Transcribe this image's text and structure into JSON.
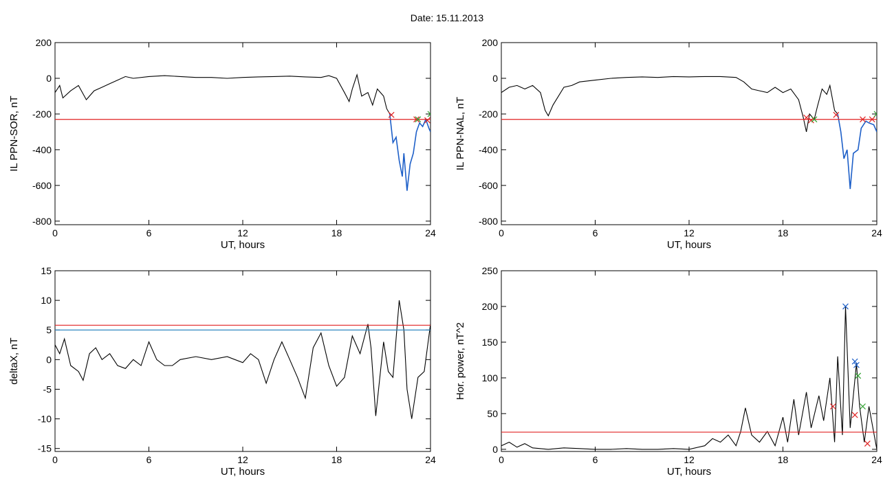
{
  "title": "Date:  15.11.2013",
  "colors": {
    "trace": "#000000",
    "highlight": "#1d5fc8",
    "threshold_red": "#e02020",
    "threshold_blue": "#2e86c1",
    "marker_red": "#e02020",
    "marker_green": "#2ca02c",
    "marker_blue": "#1d5fc8"
  },
  "chart_data": [
    {
      "type": "line",
      "xlabel": "UT, hours",
      "ylabel": "IL PPN-SOR, nT",
      "xlim": [
        0,
        24
      ],
      "ylim": [
        -820,
        200
      ],
      "xticks": [
        0,
        6,
        12,
        18,
        24
      ],
      "yticks": [
        -800,
        -600,
        -400,
        -200,
        0,
        200
      ],
      "series": [
        {
          "color": "black",
          "points": [
            [
              0,
              -80
            ],
            [
              0.3,
              -40
            ],
            [
              0.5,
              -110
            ],
            [
              1,
              -70
            ],
            [
              1.5,
              -40
            ],
            [
              2,
              -120
            ],
            [
              2.5,
              -70
            ],
            [
              3,
              -50
            ],
            [
              3.5,
              -30
            ],
            [
              4,
              -10
            ],
            [
              4.5,
              10
            ],
            [
              5,
              0
            ],
            [
              6,
              10
            ],
            [
              7,
              15
            ],
            [
              8,
              10
            ],
            [
              9,
              5
            ],
            [
              10,
              5
            ],
            [
              11,
              0
            ],
            [
              12,
              5
            ],
            [
              13,
              8
            ],
            [
              14,
              10
            ],
            [
              15,
              12
            ],
            [
              16,
              8
            ],
            [
              17,
              5
            ],
            [
              17.5,
              15
            ],
            [
              18,
              0
            ],
            [
              18.5,
              -80
            ],
            [
              18.8,
              -130
            ],
            [
              19,
              -60
            ],
            [
              19.3,
              20
            ],
            [
              19.6,
              -100
            ],
            [
              20,
              -80
            ],
            [
              20.3,
              -150
            ],
            [
              20.6,
              -60
            ],
            [
              21,
              -100
            ],
            [
              21.2,
              -170
            ],
            [
              21.4,
              -200
            ]
          ]
        },
        {
          "color": "blue",
          "points": [
            [
              21.4,
              -200
            ],
            [
              21.6,
              -360
            ],
            [
              21.8,
              -330
            ],
            [
              22,
              -460
            ],
            [
              22.2,
              -550
            ],
            [
              22.3,
              -420
            ],
            [
              22.5,
              -630
            ],
            [
              22.7,
              -480
            ],
            [
              22.9,
              -420
            ],
            [
              23.1,
              -300
            ],
            [
              23.3,
              -250
            ],
            [
              23.5,
              -270
            ],
            [
              23.7,
              -230
            ],
            [
              23.9,
              -280
            ],
            [
              24,
              -300
            ]
          ]
        }
      ],
      "thresholds": [
        {
          "y": -230,
          "color": "red"
        }
      ],
      "markers": [
        {
          "x": 21.5,
          "y": -205,
          "color": "red"
        },
        {
          "x": 23.1,
          "y": -230,
          "color": "red"
        },
        {
          "x": 23.2,
          "y": -230,
          "color": "green"
        },
        {
          "x": 23.8,
          "y": -235,
          "color": "red"
        },
        {
          "x": 24,
          "y": -200,
          "color": "green"
        }
      ]
    },
    {
      "type": "line",
      "xlabel": "UT, hours",
      "ylabel": "IL PPN-NAL, nT",
      "xlim": [
        0,
        24
      ],
      "ylim": [
        -820,
        200
      ],
      "xticks": [
        0,
        6,
        12,
        18,
        24
      ],
      "yticks": [
        -800,
        -600,
        -400,
        -200,
        0,
        200
      ],
      "series": [
        {
          "color": "black",
          "points": [
            [
              0,
              -80
            ],
            [
              0.5,
              -50
            ],
            [
              1,
              -40
            ],
            [
              1.5,
              -60
            ],
            [
              2,
              -40
            ],
            [
              2.5,
              -80
            ],
            [
              2.8,
              -180
            ],
            [
              3,
              -210
            ],
            [
              3.3,
              -150
            ],
            [
              4,
              -50
            ],
            [
              4.5,
              -40
            ],
            [
              5,
              -20
            ],
            [
              6,
              -10
            ],
            [
              7,
              0
            ],
            [
              8,
              5
            ],
            [
              9,
              8
            ],
            [
              10,
              5
            ],
            [
              11,
              10
            ],
            [
              12,
              8
            ],
            [
              13,
              10
            ],
            [
              14,
              10
            ],
            [
              15,
              5
            ],
            [
              15.5,
              -20
            ],
            [
              16,
              -60
            ],
            [
              16.5,
              -70
            ],
            [
              17,
              -80
            ],
            [
              17.5,
              -50
            ],
            [
              18,
              -80
            ],
            [
              18.5,
              -60
            ],
            [
              19,
              -120
            ],
            [
              19.3,
              -220
            ],
            [
              19.5,
              -300
            ],
            [
              19.7,
              -200
            ],
            [
              20,
              -230
            ],
            [
              20.2,
              -160
            ],
            [
              20.5,
              -60
            ],
            [
              20.8,
              -90
            ],
            [
              21,
              -40
            ],
            [
              21.3,
              -180
            ],
            [
              21.5,
              -200
            ]
          ]
        },
        {
          "color": "blue",
          "points": [
            [
              21.5,
              -200
            ],
            [
              21.7,
              -300
            ],
            [
              21.9,
              -450
            ],
            [
              22.1,
              -400
            ],
            [
              22.3,
              -620
            ],
            [
              22.5,
              -420
            ],
            [
              22.8,
              -400
            ],
            [
              23,
              -280
            ],
            [
              23.3,
              -240
            ],
            [
              23.5,
              -250
            ],
            [
              23.8,
              -260
            ],
            [
              24,
              -300
            ]
          ]
        }
      ],
      "thresholds": [
        {
          "y": -230,
          "color": "red"
        }
      ],
      "markers": [
        {
          "x": 19.5,
          "y": -220,
          "color": "red"
        },
        {
          "x": 19.8,
          "y": -235,
          "color": "red"
        },
        {
          "x": 20,
          "y": -230,
          "color": "green"
        },
        {
          "x": 21.4,
          "y": -205,
          "color": "red"
        },
        {
          "x": 23.1,
          "y": -230,
          "color": "red"
        },
        {
          "x": 23.7,
          "y": -230,
          "color": "red"
        },
        {
          "x": 24,
          "y": -200,
          "color": "green"
        }
      ]
    },
    {
      "type": "line",
      "xlabel": "UT, hours",
      "ylabel": "deltaX, nT",
      "xlim": [
        0,
        24
      ],
      "ylim": [
        -15.5,
        15
      ],
      "xticks": [
        0,
        6,
        12,
        18,
        24
      ],
      "yticks": [
        -15,
        -10,
        -5,
        0,
        5,
        10,
        15
      ],
      "series": [
        {
          "color": "black",
          "points": [
            [
              0,
              2.5
            ],
            [
              0.3,
              1
            ],
            [
              0.6,
              3.5
            ],
            [
              1,
              -1
            ],
            [
              1.5,
              -2
            ],
            [
              1.8,
              -3.5
            ],
            [
              2.2,
              1
            ],
            [
              2.6,
              2
            ],
            [
              3,
              0
            ],
            [
              3.5,
              1
            ],
            [
              4,
              -1
            ],
            [
              4.5,
              -1.5
            ],
            [
              5,
              0
            ],
            [
              5.5,
              -1
            ],
            [
              6,
              3
            ],
            [
              6.5,
              0
            ],
            [
              7,
              -1
            ],
            [
              7.5,
              -1
            ],
            [
              8,
              0
            ],
            [
              9,
              0.5
            ],
            [
              10,
              0
            ],
            [
              11,
              0.5
            ],
            [
              12,
              -0.5
            ],
            [
              12.5,
              1
            ],
            [
              13,
              0
            ],
            [
              13.5,
              -4
            ],
            [
              14,
              0
            ],
            [
              14.5,
              3
            ],
            [
              15,
              0
            ],
            [
              15.5,
              -3
            ],
            [
              16,
              -6.5
            ],
            [
              16.5,
              2
            ],
            [
              17,
              4.5
            ],
            [
              17.5,
              -1
            ],
            [
              18,
              -4.5
            ],
            [
              18.5,
              -3
            ],
            [
              19,
              4
            ],
            [
              19.5,
              1
            ],
            [
              20,
              6
            ],
            [
              20.2,
              2
            ],
            [
              20.5,
              -9.5
            ],
            [
              21,
              3
            ],
            [
              21.3,
              -2
            ],
            [
              21.6,
              -3
            ],
            [
              22,
              10
            ],
            [
              22.3,
              5
            ],
            [
              22.5,
              -5
            ],
            [
              22.8,
              -10
            ],
            [
              23.2,
              -3
            ],
            [
              23.6,
              -2
            ],
            [
              24,
              6
            ]
          ]
        }
      ],
      "thresholds": [
        {
          "y": 5.8,
          "color": "red"
        },
        {
          "y": 5.0,
          "color": "blue"
        }
      ],
      "markers": []
    },
    {
      "type": "line",
      "xlabel": "UT, hours",
      "ylabel": "Hor. power, nT^2",
      "xlim": [
        0,
        24
      ],
      "ylim": [
        -3,
        250
      ],
      "xticks": [
        0,
        6,
        12,
        18,
        24
      ],
      "yticks": [
        0,
        50,
        100,
        150,
        200,
        250
      ],
      "series": [
        {
          "color": "black",
          "points": [
            [
              0,
              5
            ],
            [
              0.5,
              10
            ],
            [
              1,
              3
            ],
            [
              1.5,
              8
            ],
            [
              2,
              2
            ],
            [
              3,
              0
            ],
            [
              4,
              2
            ],
            [
              5,
              1
            ],
            [
              6,
              0
            ],
            [
              7,
              0
            ],
            [
              8,
              1
            ],
            [
              9,
              0
            ],
            [
              10,
              0
            ],
            [
              11,
              1
            ],
            [
              12,
              0
            ],
            [
              13,
              5
            ],
            [
              13.5,
              15
            ],
            [
              14,
              10
            ],
            [
              14.5,
              20
            ],
            [
              15,
              5
            ],
            [
              15.3,
              25
            ],
            [
              15.6,
              58
            ],
            [
              16,
              20
            ],
            [
              16.5,
              10
            ],
            [
              17,
              25
            ],
            [
              17.5,
              5
            ],
            [
              18,
              45
            ],
            [
              18.3,
              10
            ],
            [
              18.7,
              70
            ],
            [
              19,
              20
            ],
            [
              19.5,
              80
            ],
            [
              19.8,
              30
            ],
            [
              20.3,
              75
            ],
            [
              20.6,
              40
            ],
            [
              21,
              100
            ],
            [
              21.3,
              10
            ],
            [
              21.5,
              130
            ],
            [
              21.8,
              20
            ],
            [
              22,
              200
            ],
            [
              22.3,
              30
            ],
            [
              22.7,
              120
            ],
            [
              22.9,
              60
            ],
            [
              23.2,
              10
            ],
            [
              23.5,
              60
            ],
            [
              24,
              0
            ]
          ]
        }
      ],
      "thresholds": [
        {
          "y": 24,
          "color": "red"
        }
      ],
      "markers": [
        {
          "x": 21.2,
          "y": 60,
          "color": "red"
        },
        {
          "x": 22,
          "y": 200,
          "color": "blue"
        },
        {
          "x": 22.6,
          "y": 123,
          "color": "blue"
        },
        {
          "x": 22.7,
          "y": 118,
          "color": "blue"
        },
        {
          "x": 22.8,
          "y": 103,
          "color": "green"
        },
        {
          "x": 22.6,
          "y": 48,
          "color": "red"
        },
        {
          "x": 23.1,
          "y": 60,
          "color": "green"
        },
        {
          "x": 23.4,
          "y": 8,
          "color": "red"
        }
      ]
    }
  ]
}
